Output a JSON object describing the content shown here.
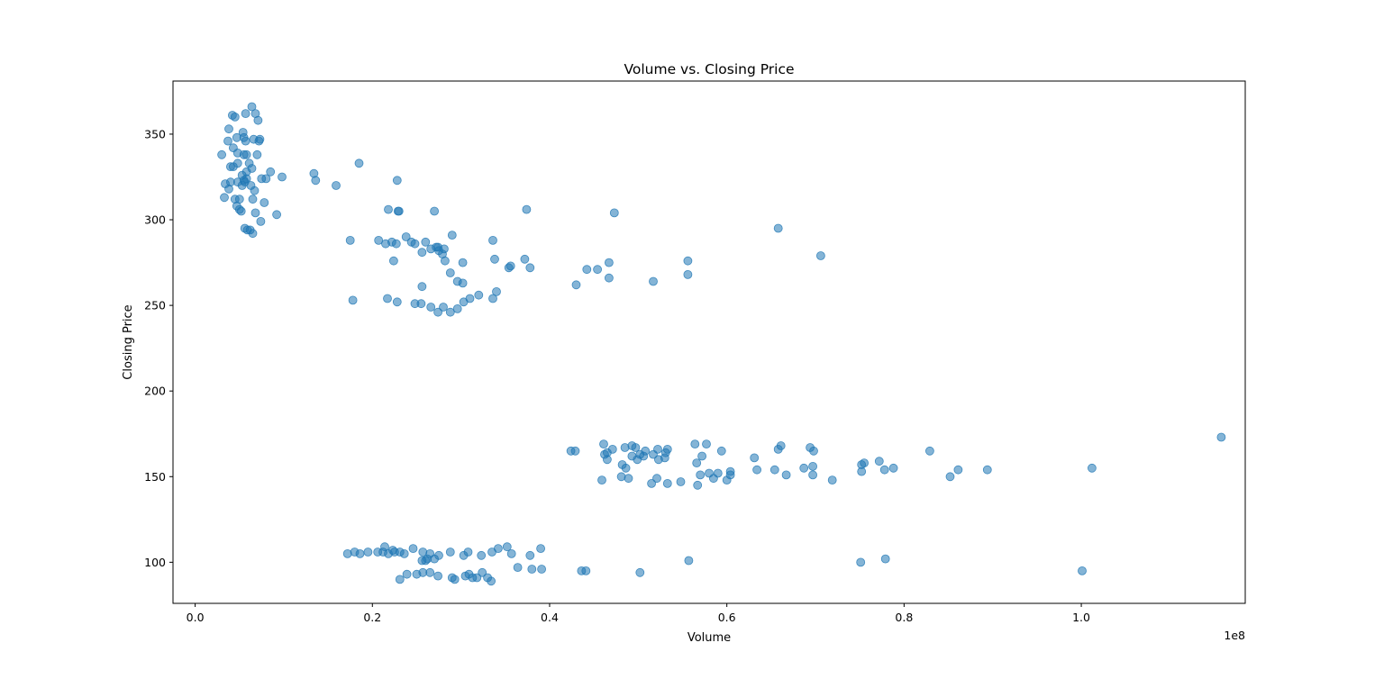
{
  "chart_data": {
    "type": "scatter",
    "title": "Volume vs. Closing Price",
    "xlabel": "Volume",
    "ylabel": "Closing Price",
    "x_offset_label": "1e8",
    "xlim": [
      -0.025,
      1.185
    ],
    "ylim": [
      76,
      381
    ],
    "x_ticks": [
      0.0,
      0.2,
      0.4,
      0.6,
      0.8,
      1.0
    ],
    "x_tick_labels": [
      "0.0",
      "0.2",
      "0.4",
      "0.6",
      "0.8",
      "1.0"
    ],
    "y_ticks": [
      100,
      150,
      200,
      250,
      300,
      350
    ],
    "y_tick_labels": [
      "100",
      "150",
      "200",
      "250",
      "300",
      "350"
    ],
    "grid": false,
    "marker_color": "#1f77b4",
    "marker_alpha": 0.55,
    "x": [
      0.03,
      0.037,
      0.042,
      0.043,
      0.045,
      0.033,
      0.04,
      0.048,
      0.054,
      0.057,
      0.064,
      0.068,
      0.072,
      0.047,
      0.055,
      0.058,
      0.061,
      0.064,
      0.067,
      0.07,
      0.043,
      0.05,
      0.053,
      0.056,
      0.04,
      0.048,
      0.055,
      0.063,
      0.071,
      0.085,
      0.098,
      0.038,
      0.045,
      0.05,
      0.053,
      0.058,
      0.066,
      0.074,
      0.038,
      0.048,
      0.057,
      0.068,
      0.078,
      0.092,
      0.073,
      0.052,
      0.059,
      0.065,
      0.056,
      0.134,
      0.136,
      0.159,
      0.185,
      0.228,
      0.08,
      0.065,
      0.058,
      0.075,
      0.047,
      0.055,
      0.034,
      0.062,
      0.218,
      0.229,
      0.23,
      0.27,
      0.29,
      0.336,
      0.275,
      0.302,
      0.374,
      0.473,
      0.175,
      0.207,
      0.215,
      0.222,
      0.227,
      0.238,
      0.244,
      0.248,
      0.256,
      0.26,
      0.266,
      0.272,
      0.279,
      0.281,
      0.288,
      0.302,
      0.338,
      0.224,
      0.256,
      0.274,
      0.282,
      0.296,
      0.354,
      0.356,
      0.372,
      0.378,
      0.442,
      0.467,
      0.178,
      0.217,
      0.228,
      0.248,
      0.255,
      0.266,
      0.274,
      0.28,
      0.288,
      0.296,
      0.303,
      0.31,
      0.32,
      0.336,
      0.34,
      0.467,
      0.43,
      0.454,
      0.517,
      0.556,
      0.658,
      0.706,
      0.556,
      0.424,
      0.429,
      0.462,
      0.465,
      0.471,
      0.485,
      0.493,
      0.497,
      0.502,
      0.508,
      0.522,
      0.531,
      0.564,
      0.577,
      0.594,
      0.658,
      0.661,
      0.694,
      0.698,
      0.829,
      0.533,
      0.461,
      0.465,
      0.482,
      0.486,
      0.493,
      0.499,
      0.506,
      0.517,
      0.523,
      0.53,
      0.566,
      0.572,
      0.58,
      0.59,
      0.604,
      0.631,
      0.634,
      0.654,
      0.667,
      0.687,
      0.697,
      0.752,
      0.755,
      0.772,
      0.778,
      0.788,
      0.852,
      0.861,
      0.894,
      1.012,
      1.158,
      0.481,
      0.489,
      0.515,
      0.521,
      0.533,
      0.548,
      0.567,
      0.57,
      0.585,
      0.6,
      0.604,
      0.697,
      0.719,
      0.752,
      0.459,
      0.172,
      0.18,
      0.186,
      0.195,
      0.206,
      0.212,
      0.214,
      0.218,
      0.223,
      0.225,
      0.231,
      0.236,
      0.246,
      0.257,
      0.26,
      0.265,
      0.275,
      0.288,
      0.308,
      0.323,
      0.335,
      0.342,
      0.352,
      0.357,
      0.39,
      0.256,
      0.262,
      0.27,
      0.303,
      0.378,
      0.231,
      0.239,
      0.25,
      0.257,
      0.265,
      0.274,
      0.29,
      0.293,
      0.305,
      0.309,
      0.313,
      0.318,
      0.324,
      0.33,
      0.334,
      0.364,
      0.38,
      0.391,
      0.436,
      0.441,
      0.502,
      0.557,
      0.751,
      0.779,
      1.001
    ],
    "y": [
      338,
      346,
      361,
      342,
      360,
      313,
      322,
      339,
      351,
      346,
      366,
      362,
      346,
      308,
      323,
      338,
      333,
      330,
      317,
      338,
      331,
      312,
      326,
      322,
      331,
      322,
      348,
      320,
      358,
      328,
      325,
      318,
      312,
      306,
      320,
      324,
      347,
      299,
      353,
      333,
      362,
      304,
      310,
      303,
      347,
      305,
      294,
      292,
      295,
      327,
      323,
      320,
      333,
      323,
      324,
      312,
      328,
      324,
      348,
      338,
      321,
      294,
      306,
      305,
      305,
      305,
      291,
      288,
      282,
      275,
      306,
      304,
      288,
      288,
      286,
      287,
      286,
      290,
      287,
      286,
      281,
      287,
      283,
      284,
      280,
      283,
      269,
      263,
      277,
      276,
      261,
      284,
      276,
      264,
      272,
      273,
      277,
      272,
      271,
      275,
      253,
      254,
      252,
      251,
      251,
      249,
      246,
      249,
      246,
      248,
      252,
      254,
      256,
      254,
      258,
      266,
      262,
      271,
      264,
      268,
      295,
      279,
      276,
      165,
      165,
      163,
      164,
      166,
      167,
      168,
      167,
      163,
      165,
      166,
      164,
      169,
      169,
      165,
      166,
      168,
      167,
      165,
      165,
      166,
      169,
      160,
      157,
      155,
      162,
      160,
      162,
      163,
      160,
      161,
      158,
      162,
      152,
      152,
      151,
      161,
      154,
      154,
      151,
      155,
      156,
      157,
      158,
      159,
      154,
      155,
      150,
      154,
      154,
      155,
      173,
      150,
      149,
      146,
      149,
      146,
      147,
      145,
      151,
      149,
      148,
      153,
      151,
      148,
      153,
      148,
      105,
      106,
      105,
      106,
      106,
      106,
      109,
      105,
      107,
      106,
      106,
      105,
      108,
      106,
      101,
      105,
      104,
      106,
      106,
      104,
      106,
      108,
      109,
      105,
      108,
      101,
      102,
      102,
      104,
      104,
      90,
      93,
      93,
      94,
      94,
      92,
      91,
      90,
      92,
      93,
      91,
      91,
      94,
      91,
      89,
      97,
      96,
      96,
      95,
      95,
      94,
      101,
      100,
      102,
      95
    ]
  }
}
